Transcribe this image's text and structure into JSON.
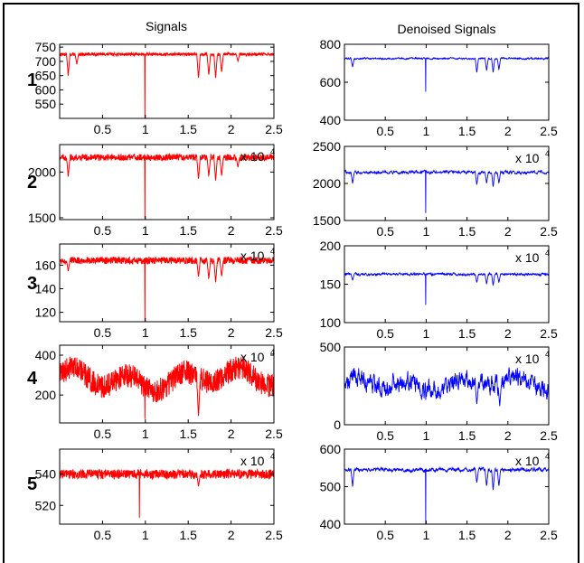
{
  "figure": {
    "left_title": "Signals",
    "right_title": "Denoised Signals",
    "exponent_text": "x 10",
    "exponent_power": "4"
  },
  "colors": {
    "noisy": "#ff0000",
    "denoised": "#0000ff"
  },
  "chart_data": [
    {
      "type": "line",
      "row": 1,
      "side": "left",
      "row_label": "1",
      "color": "red",
      "ylim": [
        500,
        760
      ],
      "yticks": [
        550,
        600,
        650,
        700,
        750
      ],
      "ytick_labels": [
        "550",
        "600",
        "650",
        "700",
        "750"
      ],
      "xlim": [
        0,
        25000
      ],
      "xtick_labels": [
        "0.5",
        "1",
        "1.5",
        "2",
        "2.5"
      ],
      "exponent": false,
      "baseline": 725,
      "noise": 5,
      "dips": [
        [
          1000,
          650
        ],
        [
          2000,
          690
        ],
        [
          9950,
          500
        ],
        [
          16200,
          640
        ],
        [
          17400,
          650
        ],
        [
          18200,
          640
        ],
        [
          18900,
          660
        ],
        [
          20800,
          700
        ]
      ]
    },
    {
      "type": "line",
      "row": 1,
      "side": "right",
      "color": "blue",
      "ylim": [
        400,
        800
      ],
      "yticks": [
        400,
        600,
        800
      ],
      "ytick_labels": [
        "400",
        "600",
        "800"
      ],
      "xlim": [
        0,
        25000
      ],
      "xtick_labels": [
        "0.5",
        "1",
        "1.5",
        "2",
        "2.5"
      ],
      "exponent": false,
      "baseline": 725,
      "noise": 3,
      "dips": [
        [
          1000,
          680
        ],
        [
          9950,
          550
        ],
        [
          16200,
          650
        ],
        [
          17400,
          660
        ],
        [
          18200,
          650
        ],
        [
          18900,
          665
        ]
      ]
    },
    {
      "type": "line",
      "row": 2,
      "side": "left",
      "row_label": "2",
      "color": "red",
      "ylim": [
        1480,
        2300
      ],
      "yticks": [
        1500,
        2000
      ],
      "ytick_labels": [
        "1500",
        "2000"
      ],
      "xlim": [
        0,
        25000
      ],
      "xtick_labels": [
        "0.5",
        "1",
        "1.5",
        "2",
        "2.5"
      ],
      "exponent": true,
      "baseline": 2160,
      "noise": 35,
      "dips": [
        [
          1000,
          1950
        ],
        [
          9950,
          1490
        ],
        [
          16200,
          1920
        ],
        [
          17400,
          1950
        ],
        [
          18200,
          1900
        ],
        [
          18900,
          1950
        ],
        [
          20800,
          2050
        ]
      ]
    },
    {
      "type": "line",
      "row": 2,
      "side": "right",
      "color": "blue",
      "ylim": [
        1500,
        2500
      ],
      "yticks": [
        1500,
        2000,
        2500
      ],
      "ytick_labels": [
        "1500",
        "2000",
        "2500"
      ],
      "xlim": [
        0,
        25000
      ],
      "xtick_labels": [
        "0.5",
        "1",
        "1.5",
        "2",
        "2.5"
      ],
      "exponent": true,
      "baseline": 2150,
      "noise": 12,
      "dips": [
        [
          1000,
          2000
        ],
        [
          9950,
          1600
        ],
        [
          16200,
          1980
        ],
        [
          17400,
          2000
        ],
        [
          18200,
          1950
        ],
        [
          18900,
          2000
        ]
      ]
    },
    {
      "type": "line",
      "row": 3,
      "side": "left",
      "row_label": "3",
      "color": "red",
      "ylim": [
        112,
        178
      ],
      "yticks": [
        120,
        140,
        160
      ],
      "ytick_labels": [
        "120",
        "140",
        "160"
      ],
      "xlim": [
        0,
        25000
      ],
      "xtick_labels": [
        "0.5",
        "1",
        "1.5",
        "2",
        "2.5"
      ],
      "exponent": true,
      "baseline": 164,
      "noise": 3,
      "dips": [
        [
          1000,
          155
        ],
        [
          9950,
          112
        ],
        [
          16200,
          150
        ],
        [
          17400,
          148
        ],
        [
          18200,
          145
        ],
        [
          18900,
          150
        ]
      ]
    },
    {
      "type": "line",
      "row": 3,
      "side": "right",
      "color": "blue",
      "ylim": [
        100,
        200
      ],
      "yticks": [
        100,
        150,
        200
      ],
      "ytick_labels": [
        "100",
        "150",
        "200"
      ],
      "xlim": [
        0,
        25000
      ],
      "xtick_labels": [
        "0.5",
        "1",
        "1.5",
        "2",
        "2.5"
      ],
      "exponent": true,
      "baseline": 163,
      "noise": 1,
      "dips": [
        [
          1000,
          155
        ],
        [
          9950,
          123
        ],
        [
          16200,
          152
        ],
        [
          17400,
          150
        ],
        [
          18200,
          148
        ],
        [
          18900,
          152
        ]
      ]
    },
    {
      "type": "line",
      "row": 4,
      "side": "left",
      "row_label": "4",
      "color": "red",
      "ylim": [
        60,
        450
      ],
      "yticks": [
        200,
        400
      ],
      "ytick_labels": [
        "200",
        "400"
      ],
      "xlim": [
        0,
        25000
      ],
      "xtick_labels": [
        "0.5",
        "1",
        "1.5",
        "2",
        "2.5"
      ],
      "exponent": true,
      "baseline": 280,
      "noise": 60,
      "dips": [
        [
          9950,
          80
        ],
        [
          16200,
          90
        ]
      ]
    },
    {
      "type": "line",
      "row": 4,
      "side": "right",
      "color": "blue",
      "ylim": [
        0,
        500
      ],
      "yticks": [
        0,
        500
      ],
      "ytick_labels": [
        "0",
        "500"
      ],
      "xlim": [
        0,
        25000
      ],
      "xtick_labels": [
        "0.5",
        "1",
        "1.5",
        "2",
        "2.5"
      ],
      "exponent": true,
      "baseline": 260,
      "noise": 40,
      "dips": [
        [
          9950,
          160
        ],
        [
          16200,
          130
        ],
        [
          19000,
          120
        ]
      ]
    },
    {
      "type": "line",
      "row": 5,
      "side": "left",
      "row_label": "5",
      "color": "red",
      "ylim": [
        508,
        556
      ],
      "yticks": [
        520,
        540
      ],
      "ytick_labels": [
        "520",
        "540"
      ],
      "xlim": [
        0,
        25000
      ],
      "xtick_labels": [
        "0.5",
        "1",
        "1.5",
        "2",
        "2.5"
      ],
      "exponent": true,
      "baseline": 540,
      "noise": 3,
      "dips": [
        [
          9300,
          512
        ],
        [
          16200,
          532
        ]
      ]
    },
    {
      "type": "line",
      "row": 5,
      "side": "right",
      "color": "blue",
      "ylim": [
        400,
        600
      ],
      "yticks": [
        400,
        500,
        600
      ],
      "ytick_labels": [
        "400",
        "500",
        "600"
      ],
      "xlim": [
        0,
        25000
      ],
      "xtick_labels": [
        "0.5",
        "1",
        "1.5",
        "2",
        "2.5"
      ],
      "exponent": true,
      "baseline": 545,
      "noise": 3,
      "dips": [
        [
          1000,
          500
        ],
        [
          9950,
          400
        ],
        [
          16200,
          510
        ],
        [
          17400,
          500
        ],
        [
          18200,
          490
        ],
        [
          18900,
          500
        ]
      ]
    }
  ]
}
